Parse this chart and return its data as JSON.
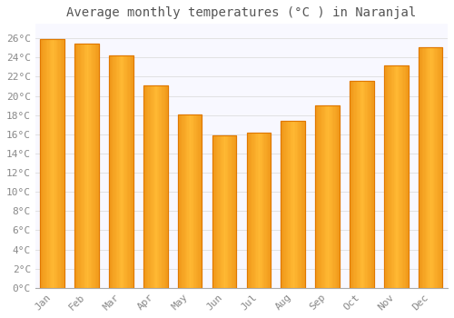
{
  "title": "Average monthly temperatures (°C ) in Naranjal",
  "months": [
    "Jan",
    "Feb",
    "Mar",
    "Apr",
    "May",
    "Jun",
    "Jul",
    "Aug",
    "Sep",
    "Oct",
    "Nov",
    "Dec"
  ],
  "values": [
    25.9,
    25.4,
    24.2,
    21.1,
    18.1,
    15.9,
    16.2,
    17.4,
    19.0,
    21.6,
    23.2,
    25.1
  ],
  "bar_color_center": "#FFB833",
  "bar_color_edge": "#E07800",
  "background_color": "#FFFFFF",
  "plot_bg_color": "#F8F8FF",
  "grid_color": "#DDDDDD",
  "ytick_labels": [
    "0°C",
    "2°C",
    "4°C",
    "6°C",
    "8°C",
    "10°C",
    "12°C",
    "14°C",
    "16°C",
    "18°C",
    "20°C",
    "22°C",
    "24°C",
    "26°C"
  ],
  "ytick_values": [
    0,
    2,
    4,
    6,
    8,
    10,
    12,
    14,
    16,
    18,
    20,
    22,
    24,
    26
  ],
  "ylim": [
    0,
    27.5
  ],
  "title_fontsize": 10,
  "tick_fontsize": 8,
  "tick_font_color": "#888888",
  "title_color": "#555555"
}
